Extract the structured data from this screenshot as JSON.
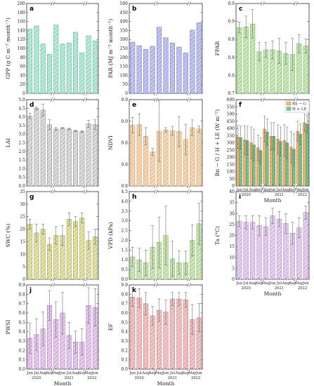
{
  "x_labels": [
    "Jun",
    "Jul",
    "Aug",
    "Sep",
    "May",
    "Jun",
    "Jul",
    "Aug",
    "Sep",
    "May",
    "Jun"
  ],
  "years": [
    "2020",
    "2021",
    "2022"
  ],
  "xlabel": "Month",
  "chart_data": [
    {
      "id": "a",
      "type": "bar",
      "letter": "a",
      "ylabel": "GPP (g C m⁻² month⁻¹)",
      "ylim": [
        0,
        200
      ],
      "yticks": [
        0,
        20,
        40,
        60,
        80,
        100,
        120,
        140,
        160,
        180,
        200
      ],
      "color": "#b7ecd9",
      "stroke": "#5aa890",
      "values": [
        143,
        150,
        110,
        87,
        152,
        110,
        112,
        136,
        90,
        128,
        117
      ],
      "errors": null
    },
    {
      "id": "b",
      "type": "bar",
      "letter": "b",
      "ylabel": "PAR (MJ m⁻² month⁻¹)",
      "ylim": [
        0,
        500
      ],
      "yticks": [
        0,
        50,
        100,
        150,
        200,
        250,
        300,
        350,
        400,
        450,
        500
      ],
      "color": "#c3c6ee",
      "stroke": "#6f72b8",
      "values": [
        285,
        265,
        245,
        262,
        368,
        310,
        280,
        258,
        225,
        352,
        393
      ],
      "errors": null
    },
    {
      "id": "c",
      "type": "bar",
      "letter": "c",
      "ylabel": "FPAR",
      "ylim": [
        0.7,
        0.95
      ],
      "yticks": [
        0.7,
        0.75,
        0.8,
        0.85,
        0.9,
        0.95
      ],
      "color": "#c8ebb8",
      "stroke": "#72a85c",
      "values": [
        0.883,
        0.885,
        0.893,
        0.816,
        0.821,
        0.821,
        0.818,
        0.811,
        0.808,
        0.838,
        0.832
      ],
      "errors": [
        0.015,
        0.03,
        0.04,
        0.025,
        0.02,
        0.025,
        0.035,
        0.03,
        0.045,
        0.025,
        0.02
      ]
    },
    {
      "id": "d",
      "type": "bar",
      "letter": "d",
      "ylabel": "LAI",
      "ylim": [
        0,
        5.0
      ],
      "yticks": [
        0,
        0.5,
        1.0,
        1.5,
        2.0,
        2.5,
        3.0,
        3.5,
        4.0,
        4.5,
        5.0
      ],
      "color": "#dcdcdc",
      "stroke": "#888888",
      "values": [
        4.05,
        4.5,
        4.4,
        3.55,
        3.3,
        3.35,
        3.3,
        3.2,
        3.15,
        3.6,
        3.55
      ],
      "errors": [
        0.15,
        0.08,
        0.35,
        0.28,
        0.08,
        0.04,
        0.04,
        0.05,
        0.05,
        0.2,
        0.28
      ]
    },
    {
      "id": "e",
      "type": "bar",
      "letter": "e",
      "ylabel": "NDVI",
      "ylim": [
        0.75,
        0.95
      ],
      "yticks": [
        0.75,
        0.8,
        0.85,
        0.9,
        0.95
      ],
      "color": "#f6d7b3",
      "stroke": "#c69560",
      "values": [
        0.891,
        0.892,
        0.865,
        0.829,
        0.877,
        0.88,
        0.878,
        0.876,
        0.858,
        0.885,
        0.882
      ],
      "errors": [
        0.018,
        0.025,
        0.02,
        0.008,
        0.07,
        0.005,
        0.01,
        0.035,
        0.035,
        0.018,
        0.007
      ]
    },
    {
      "id": "f",
      "type": "groupedbar",
      "letter": "f",
      "ylabel": "Rn − G / H + LE (W m⁻²)",
      "ylim": [
        0,
        600
      ],
      "yticks": [
        0,
        50,
        100,
        150,
        200,
        250,
        300,
        350,
        400,
        450,
        500,
        550,
        600
      ],
      "series": [
        {
          "name": "Rn − G",
          "color": "#f2b67f",
          "stroke": "#b47a3f",
          "values": [
            340,
            320,
            300,
            265,
            395,
            345,
            325,
            315,
            270,
            380,
            440
          ],
          "errors": [
            80,
            100,
            110,
            90,
            90,
            95,
            100,
            110,
            110,
            70,
            60
          ]
        },
        {
          "name": "H + LE",
          "color": "#7fc78f",
          "stroke": "#3e8a50",
          "values": [
            335,
            315,
            285,
            245,
            375,
            345,
            310,
            300,
            255,
            360,
            430
          ],
          "errors": [
            80,
            100,
            110,
            90,
            90,
            95,
            100,
            110,
            110,
            70,
            60
          ]
        }
      ]
    },
    {
      "id": "g",
      "type": "bar",
      "letter": "g",
      "ylabel": "SWC (%)",
      "ylim": [
        0,
        35
      ],
      "yticks": [
        0,
        5,
        10,
        15,
        20,
        25,
        30,
        35
      ],
      "color": "#e3e3a8",
      "stroke": "#9a9a52",
      "values": [
        22,
        18.5,
        20,
        14,
        17.5,
        17.5,
        24,
        23,
        24.5,
        15.5,
        17
      ],
      "errors": [
        2,
        3.5,
        2,
        2.5,
        3.5,
        4,
        2.5,
        2,
        2,
        3.5,
        3
      ]
    },
    {
      "id": "h",
      "type": "bar",
      "letter": "h",
      "ylabel": "VPD (kPa)",
      "ylim": [
        0,
        4.5
      ],
      "yticks": [
        0,
        0.5,
        1.0,
        1.5,
        2.0,
        2.5,
        3.0,
        3.5,
        4.0,
        4.5
      ],
      "color": "#cfe8b8",
      "stroke": "#7ea561",
      "values": [
        1.15,
        1.0,
        0.85,
        1.65,
        1.9,
        2.25,
        1.05,
        0.85,
        0.85,
        2.0,
        2.85
      ],
      "errors": [
        0.5,
        0.6,
        0.65,
        1.1,
        1.3,
        1.5,
        0.9,
        0.6,
        0.6,
        0.8,
        1.05
      ]
    },
    {
      "id": "i",
      "type": "bar",
      "letter": "i",
      "ylabel": "Ta (°C)",
      "ylim": [
        0,
        40
      ],
      "yticks": [
        0,
        5,
        10,
        15,
        20,
        25,
        30,
        35,
        40
      ],
      "color": "#e6d2ef",
      "stroke": "#a47ab8",
      "values": [
        26.5,
        26,
        26,
        24.5,
        24,
        29,
        27.5,
        25.5,
        21,
        23.5,
        30.5
      ],
      "errors": [
        2.5,
        3,
        3,
        4.5,
        4,
        3.5,
        3.5,
        4.5,
        5,
        4.5,
        3
      ]
    },
    {
      "id": "j",
      "type": "bar",
      "letter": "j",
      "ylabel": "PWSI",
      "ylim": [
        0,
        0.9
      ],
      "yticks": [
        0,
        0.1,
        0.2,
        0.3,
        0.4,
        0.5,
        0.6,
        0.7,
        0.8,
        0.9
      ],
      "color": "#e8cdee",
      "stroke": "#a46eb4",
      "values": [
        0.33,
        0.37,
        0.43,
        0.68,
        0.53,
        0.6,
        0.36,
        0.29,
        0.29,
        0.68,
        0.66
      ],
      "errors": [
        0.16,
        0.17,
        0.18,
        0.16,
        0.19,
        0.22,
        0.14,
        0.12,
        0.14,
        0.19,
        0.2
      ]
    },
    {
      "id": "k",
      "type": "bar",
      "letter": "k",
      "ylabel": "EF",
      "ylim": [
        0,
        0.9
      ],
      "yticks": [
        0,
        0.1,
        0.2,
        0.3,
        0.4,
        0.5,
        0.6,
        0.7,
        0.8,
        0.9
      ],
      "color": "#f2c6c6",
      "stroke": "#bb7070",
      "values": [
        0.77,
        0.76,
        0.7,
        0.57,
        0.63,
        0.61,
        0.75,
        0.75,
        0.74,
        0.53,
        0.55
      ],
      "errors": [
        0.1,
        0.1,
        0.12,
        0.1,
        0.12,
        0.13,
        0.07,
        0.07,
        0.08,
        0.16,
        0.15
      ]
    }
  ]
}
